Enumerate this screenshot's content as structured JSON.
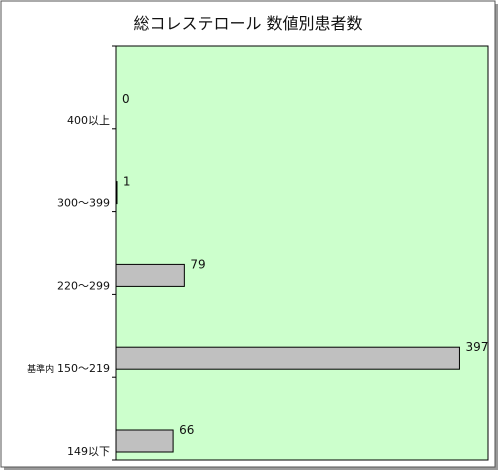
{
  "chart_data": {
    "type": "bar",
    "orientation": "horizontal",
    "title": "総コレステロール 数値別患者数",
    "categories": [
      "400以上",
      "300～399",
      "220～299",
      "150～219",
      "149以下"
    ],
    "category_prefixes": [
      "",
      "",
      "",
      "基準内",
      ""
    ],
    "values": [
      0,
      1,
      79,
      397,
      66
    ],
    "xlabel": "",
    "ylabel": "",
    "xlim": [
      0,
      430
    ],
    "grid": false,
    "legend": "none",
    "colors": {
      "plot_background": "#ccffcc",
      "bar_fill": "#c0c0c0",
      "bar_stroke": "#000000",
      "frame_border": "#555555"
    }
  }
}
